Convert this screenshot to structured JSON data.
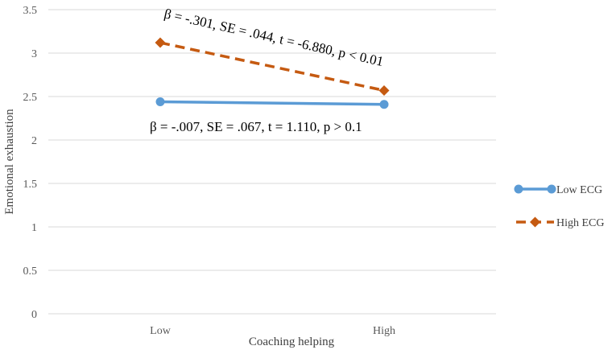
{
  "chart_data": {
    "type": "line",
    "title": "",
    "xlabel": "Coaching helping",
    "ylabel": "Emotional exhaustion",
    "categories": [
      "Low",
      "High"
    ],
    "ylim": [
      0,
      3.5
    ],
    "yticks": [
      "0",
      "0.5",
      "1",
      "1.5",
      "2",
      "2.5",
      "3",
      "3.5"
    ],
    "grid": true,
    "legend_position": "right",
    "series": [
      {
        "name": "Low ECG",
        "values": [
          2.44,
          2.41
        ],
        "color": "#5B9BD5",
        "style": "solid",
        "marker": "circle"
      },
      {
        "name": "High ECG",
        "values": [
          3.12,
          2.57
        ],
        "color": "#C55A11",
        "style": "dashed",
        "marker": "diamond"
      }
    ],
    "annotations": [
      {
        "text": "β = -.301, SE = .044, t = -6.880, p < 0.01",
        "series": "High ECG"
      },
      {
        "text": "β = -.007, SE = .067, t = 1.110, p > 0.1",
        "series": "Low ECG"
      }
    ]
  }
}
